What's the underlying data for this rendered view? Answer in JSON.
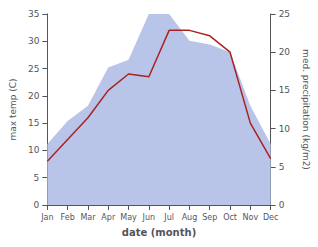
{
  "chart_data": {
    "type": "line",
    "categories": [
      "Jan",
      "Feb",
      "Mar",
      "Apr",
      "May",
      "Jun",
      "Jul",
      "Aug",
      "Sep",
      "Oct",
      "Nov",
      "Dec"
    ],
    "series": [
      {
        "type": "area",
        "axis": "y2",
        "color": "#b8c4e8",
        "values": [
          8,
          11,
          13,
          18,
          19,
          25,
          25,
          21.5,
          21,
          20,
          13,
          8
        ]
      },
      {
        "type": "line",
        "color": "#aa2222",
        "values": [
          8,
          12,
          16,
          21,
          24,
          23.5,
          32,
          32,
          31,
          28,
          15,
          8.5
        ]
      }
    ],
    "xlabel": "date (month)",
    "ylabel": "max temp (C)",
    "y2label": "med. precipitation (kg/m2)",
    "ylim": [
      0,
      35
    ],
    "yticks": [
      0,
      5,
      10,
      15,
      20,
      25,
      30,
      35
    ],
    "y2lim": [
      0,
      25
    ],
    "y2ticks": [
      0,
      5,
      10,
      15,
      20,
      25
    ],
    "grid": false
  }
}
